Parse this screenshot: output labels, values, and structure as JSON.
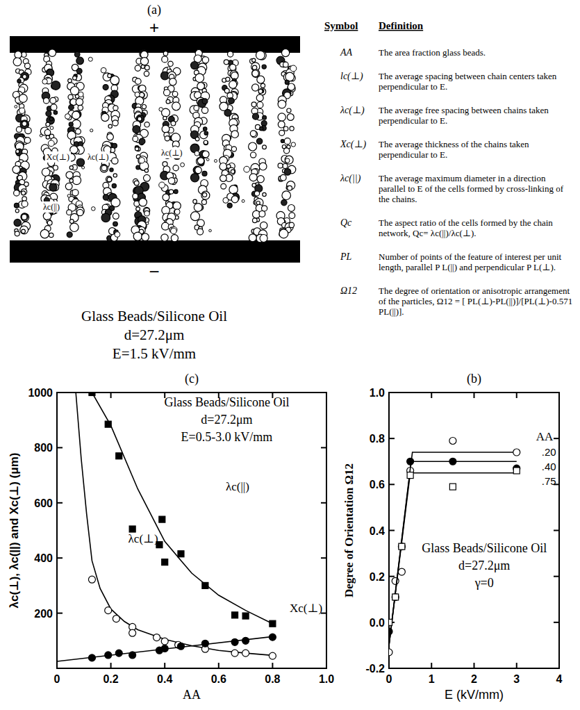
{
  "panel_a": {
    "label": "(a)",
    "plus": "+",
    "minus": "−",
    "annotations": [
      "Xc(⊥)",
      "λc(⊥)",
      "λc(⊥)",
      "λc(||)"
    ],
    "caption": [
      "Glass Beads/Silicone Oil",
      "d=27.2μm",
      "E=1.5 kV/mm"
    ]
  },
  "definitions": {
    "headers": [
      "Symbol",
      "Definition"
    ],
    "rows": [
      [
        "AA",
        "The area fraction glass beads."
      ],
      [
        "lc(⊥)",
        "The average spacing between chain centers taken perpendicular to E."
      ],
      [
        "λc(⊥)",
        "The average free spacing between chains taken perpendicular to E."
      ],
      [
        "Xc(⊥)",
        "The average thickness of the chains taken perpendicular to E."
      ],
      [
        "λc(||)",
        "The average maximum diameter in a direction parallel to E of the cells formed by cross-linking of the chains."
      ],
      [
        "Qc",
        "The aspect ratio of the cells formed by the chain network, Qc= λc(||)/λc(⊥)."
      ],
      [
        "PL",
        "Number of points of the feature of interest per unit length, parallel P L(||) and perpendicular P L(⊥)."
      ],
      [
        "Ω12",
        "The degree of orientation or anisotropic arrangement of the particles, Ω12 = [ PL(⊥)-PL(||)]/[PL(⊥)-0.571 PL(||)]."
      ]
    ]
  },
  "chart_data": [
    {
      "type": "scatter",
      "title": "(c)",
      "xlabel": "AA",
      "ylabel": "λc(⊥), λc(||) and Xc(⊥) (μm)",
      "annotations": [
        "Glass Beads/Silicone Oil",
        "d=27.2μm",
        "E=0.5-3.0 kV/mm"
      ],
      "xlim": [
        0,
        1.0
      ],
      "ylim": [
        0,
        1000
      ],
      "xticks": [
        0,
        0.2,
        0.4,
        0.6,
        0.8,
        {
          "value": 1.0,
          "label": "1.0"
        }
      ],
      "yticks": [
        200,
        400,
        600,
        800,
        1000
      ],
      "color": "#000000",
      "series": [
        {
          "name": "λc(||)",
          "marker": "filled-square",
          "x": [
            0.13,
            0.19,
            0.23,
            0.28,
            0.39,
            0.38,
            0.4,
            0.46,
            0.55,
            0.66,
            0.7,
            0.8
          ],
          "values": [
            1000,
            885,
            770,
            505,
            540,
            448,
            385,
            415,
            300,
            193,
            190,
            162
          ],
          "fit_x": [
            0.13,
            0.2,
            0.3,
            0.4,
            0.5,
            0.6,
            0.7,
            0.8
          ],
          "fit_values": [
            1000,
            880,
            650,
            460,
            345,
            265,
            210,
            162
          ]
        },
        {
          "name": "λc(⊥)",
          "marker": "open-circle",
          "x": [
            0.13,
            0.19,
            0.22,
            0.28,
            0.28,
            0.37,
            0.4,
            0.45,
            0.55,
            0.66,
            0.7,
            0.8
          ],
          "values": [
            322,
            210,
            180,
            150,
            128,
            112,
            98,
            85,
            70,
            55,
            55,
            45
          ],
          "fit_x": [
            0.07,
            0.09,
            0.11,
            0.13,
            0.16,
            0.2,
            0.25,
            0.3,
            0.4,
            0.5,
            0.6,
            0.7,
            0.8
          ],
          "fit_values": [
            1000,
            760,
            560,
            390,
            290,
            215,
            170,
            140,
            105,
            82,
            65,
            55,
            47
          ]
        },
        {
          "name": "Xc(⊥)",
          "marker": "filled-circle",
          "x": [
            0.13,
            0.19,
            0.23,
            0.28,
            0.38,
            0.4,
            0.46,
            0.55,
            0.66,
            0.7,
            0.8
          ],
          "values": [
            38,
            48,
            55,
            48,
            65,
            72,
            80,
            90,
            95,
            100,
            113
          ],
          "fit_x": [
            0,
            0.8
          ],
          "fit_values": [
            25,
            115
          ]
        }
      ]
    },
    {
      "type": "scatter",
      "title": "(b)",
      "xlabel": "E (kV/mm)",
      "ylabel": "Degree of Orientation  Ω12",
      "annotations": [
        "Glass Beads/Silicone Oil",
        "d=27.2μm",
        "γ=0"
      ],
      "legend_title": "AA",
      "legend": "upper right",
      "xlim": [
        0,
        4
      ],
      "ylim": [
        -0.2,
        1.0
      ],
      "xticks": [
        0,
        1,
        2,
        3,
        4
      ],
      "yticks": [
        -0.2,
        {
          "value": 0.0,
          "label": "0.0"
        },
        0.2,
        0.4,
        0.6,
        0.8,
        {
          "value": 1.0,
          "label": "1.0"
        }
      ],
      "color": "#000000",
      "series": [
        {
          "name": ".20",
          "marker": "open-circle",
          "x": [
            0,
            0.15,
            0.3,
            0.5,
            1.5,
            3
          ],
          "values": [
            -0.13,
            0.18,
            0.22,
            0.66,
            0.79,
            0.74
          ],
          "fit_x": [
            0,
            0.55,
            3
          ],
          "fit_values": [
            -0.1,
            0.74,
            0.74
          ]
        },
        {
          "name": ".40",
          "marker": "filled-circle",
          "x": [
            0,
            0.15,
            0.3,
            0.5,
            1.5,
            3
          ],
          "values": [
            -0.04,
            0.11,
            0.33,
            0.7,
            0.7,
            0.67
          ],
          "fit_x": [
            0,
            0.52,
            3
          ],
          "fit_values": [
            -0.1,
            0.7,
            0.7
          ]
        },
        {
          "name": ".75",
          "marker": "open-square",
          "x": [
            0,
            0.15,
            0.3,
            0.5,
            1.5,
            3
          ],
          "values": [
            0.0,
            0.11,
            0.33,
            0.64,
            0.59,
            0.66
          ],
          "fit_x": [
            0,
            0.5,
            3
          ],
          "fit_values": [
            -0.1,
            0.65,
            0.65
          ]
        }
      ]
    }
  ]
}
